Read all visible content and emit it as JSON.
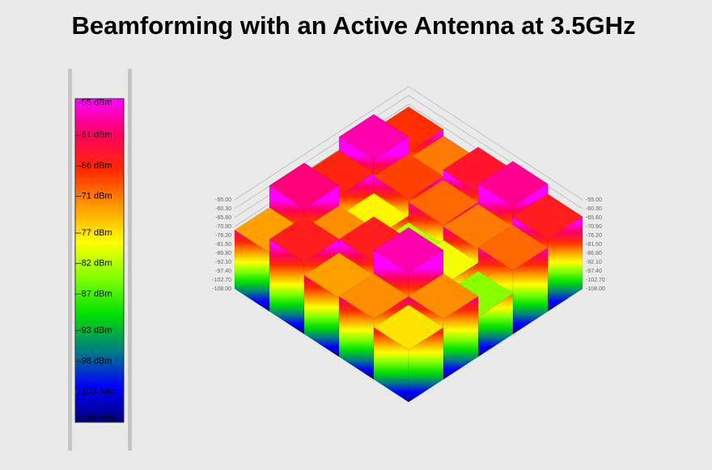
{
  "chart_data": {
    "type": "bar3d",
    "title": "Beamforming with an Active Antenna at 3.5GHz",
    "values": [
      [
        -77,
        -72,
        -84,
        -70,
        -65
      ],
      [
        -72,
        -58,
        -79,
        -71,
        -59
      ],
      [
        -73,
        -65,
        -82,
        -70,
        -64
      ],
      [
        -65,
        -72,
        -78,
        -68,
        -71
      ],
      [
        -73,
        -60,
        -66,
        -58,
        -67
      ]
    ],
    "zlim": [
      -108,
      -55
    ],
    "zticks": [
      {
        "value": -55,
        "label": "-55.00"
      },
      {
        "value": -60.3,
        "label": "-60.30"
      },
      {
        "value": -65.6,
        "label": "-65.60"
      },
      {
        "value": -70.9,
        "label": "-70.90"
      },
      {
        "value": -76.2,
        "label": "-76.20"
      },
      {
        "value": -81.5,
        "label": "-81.50"
      },
      {
        "value": -86.8,
        "label": "-86.80"
      },
      {
        "value": -92.1,
        "label": "-92.10"
      },
      {
        "value": -97.4,
        "label": "-97.40"
      },
      {
        "value": -102.7,
        "label": "-102.70"
      },
      {
        "value": -108,
        "label": "-108.00"
      }
    ],
    "colorbar_ticks": [
      {
        "value": -55,
        "label": "-55 dBm"
      },
      {
        "value": -61,
        "label": "-61 dBm"
      },
      {
        "value": -66,
        "label": "-66 dBm"
      },
      {
        "value": -71,
        "label": "-71 dBm"
      },
      {
        "value": -77,
        "label": "-77 dBm"
      },
      {
        "value": -82,
        "label": "-82 dBm"
      },
      {
        "value": -87,
        "label": "-87 dBm"
      },
      {
        "value": -93,
        "label": "-93 dBm"
      },
      {
        "value": -98,
        "label": "-98 dBm"
      },
      {
        "value": -103,
        "label": "-103 dBm"
      },
      {
        "value": -108,
        "label": "-108 dBm"
      }
    ],
    "colormap": [
      "#ff00ff",
      "#ff0060",
      "#ff2a00",
      "#ff9a00",
      "#ffff00",
      "#7fff00",
      "#00e000",
      "#008080",
      "#0000ff",
      "#00007a"
    ],
    "grid": true
  }
}
